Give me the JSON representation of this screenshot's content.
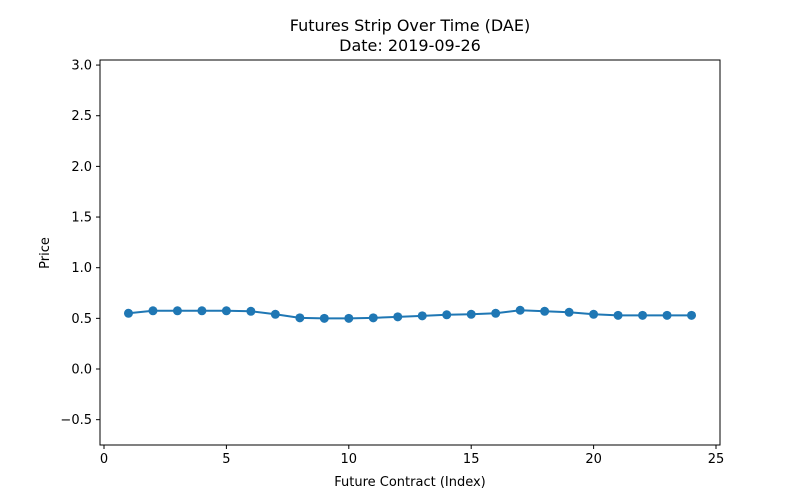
{
  "chart_data": {
    "type": "line",
    "title": "Futures Strip Over Time (DAE)",
    "subtitle": "Date: 2019-09-26",
    "xlabel": "Future Contract (Index)",
    "ylabel": "Price",
    "xlim": [
      0,
      25
    ],
    "ylim": [
      -0.75,
      3.05
    ],
    "xticks": [
      0,
      5,
      10,
      15,
      20,
      25
    ],
    "xtick_labels": [
      "0",
      "5",
      "10",
      "15",
      "20",
      "25"
    ],
    "yticks": [
      -0.5,
      0.0,
      0.5,
      1.0,
      1.5,
      2.0,
      2.5,
      3.0
    ],
    "ytick_labels": [
      "−0.5",
      "0.0",
      "0.5",
      "1.0",
      "1.5",
      "2.0",
      "2.5",
      "3.0"
    ],
    "grid": false,
    "legend": "none",
    "series": [
      {
        "color": "#1f77b4",
        "marker": "circle",
        "x": [
          1,
          2,
          3,
          4,
          5,
          6,
          7,
          8,
          9,
          10,
          11,
          12,
          13,
          14,
          15,
          16,
          17,
          18,
          19,
          20,
          21,
          22,
          23,
          24
        ],
        "values": [
          0.55,
          0.575,
          0.575,
          0.575,
          0.575,
          0.57,
          0.54,
          0.505,
          0.5,
          0.5,
          0.505,
          0.515,
          0.525,
          0.535,
          0.54,
          0.55,
          0.58,
          0.57,
          0.56,
          0.54,
          0.53,
          0.53,
          0.53,
          0.53
        ]
      }
    ]
  }
}
